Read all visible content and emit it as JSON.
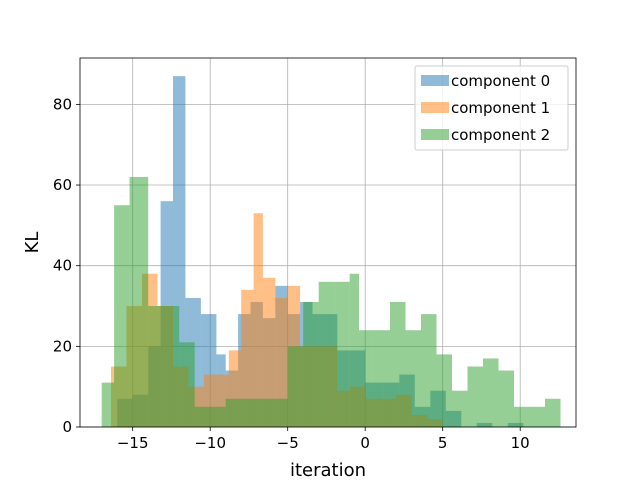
{
  "chart_data": {
    "type": "bar",
    "xlabel": "iteration",
    "ylabel": "KL",
    "xlim": [
      -18.4,
      13.6
    ],
    "ylim": [
      0,
      91.5
    ],
    "grid": true,
    "legend_position": "top-right",
    "x_ticks": [
      -15,
      -10,
      -5,
      0,
      5,
      10
    ],
    "x_tick_labels": [
      "−15",
      "−10",
      "−5",
      "0",
      "5",
      "10"
    ],
    "y_ticks": [
      0,
      20,
      40,
      60,
      80
    ],
    "y_tick_labels": [
      "0",
      "20",
      "40",
      "60",
      "80"
    ],
    "series": [
      {
        "name": "component 0",
        "color": "#1f77b4",
        "opacity": 0.5,
        "bins": [
          [
            -16.0,
            -15.0,
            7
          ],
          [
            -15.0,
            -14.0,
            8
          ],
          [
            -14.0,
            -13.2,
            20
          ],
          [
            -13.2,
            -12.4,
            56
          ],
          [
            -12.4,
            -11.6,
            87
          ],
          [
            -11.6,
            -10.6,
            32
          ],
          [
            -10.6,
            -9.6,
            28
          ],
          [
            -9.6,
            -9.0,
            18
          ],
          [
            -9.0,
            -8.2,
            14
          ],
          [
            -8.2,
            -7.4,
            28
          ],
          [
            -7.4,
            -6.6,
            31
          ],
          [
            -6.6,
            -5.8,
            27
          ],
          [
            -5.8,
            -5.0,
            35
          ],
          [
            -5.0,
            -4.2,
            28
          ],
          [
            -4.2,
            -3.4,
            31
          ],
          [
            -3.4,
            -2.6,
            28
          ],
          [
            -2.6,
            -1.8,
            28
          ],
          [
            -1.8,
            -1.0,
            19
          ],
          [
            -1.0,
            0.0,
            19
          ],
          [
            0.0,
            1.2,
            11
          ],
          [
            1.2,
            2.2,
            11
          ],
          [
            2.2,
            3.2,
            13
          ],
          [
            3.2,
            4.2,
            5
          ],
          [
            4.2,
            5.2,
            9
          ],
          [
            5.2,
            6.2,
            4
          ],
          [
            6.2,
            7.2,
            0
          ],
          [
            7.2,
            8.2,
            1
          ],
          [
            8.2,
            9.2,
            0
          ],
          [
            9.2,
            10.2,
            1
          ]
        ]
      },
      {
        "name": "component 1",
        "color": "#ff7f0e",
        "opacity": 0.5,
        "bins": [
          [
            -16.4,
            -15.4,
            15
          ],
          [
            -15.4,
            -14.4,
            30
          ],
          [
            -14.4,
            -13.4,
            38
          ],
          [
            -13.4,
            -12.4,
            30
          ],
          [
            -12.4,
            -11.4,
            15
          ],
          [
            -11.4,
            -10.4,
            10
          ],
          [
            -10.4,
            -9.6,
            13
          ],
          [
            -9.6,
            -8.8,
            13
          ],
          [
            -8.8,
            -8.0,
            19
          ],
          [
            -8.0,
            -7.2,
            34
          ],
          [
            -7.2,
            -6.6,
            53
          ],
          [
            -6.6,
            -5.8,
            37
          ],
          [
            -5.8,
            -5.0,
            32
          ],
          [
            -5.0,
            -4.2,
            35
          ],
          [
            -4.2,
            -3.4,
            20
          ],
          [
            -3.4,
            -2.6,
            20
          ],
          [
            -2.6,
            -1.8,
            20
          ],
          [
            -1.8,
            -1.0,
            9
          ],
          [
            -1.0,
            0.0,
            10
          ],
          [
            0.0,
            1.0,
            7
          ],
          [
            1.0,
            2.0,
            7
          ],
          [
            2.0,
            3.0,
            8
          ],
          [
            3.0,
            4.0,
            3
          ],
          [
            4.0,
            5.0,
            2
          ]
        ]
      },
      {
        "name": "component 2",
        "color": "#2ca02c",
        "opacity": 0.5,
        "bins": [
          [
            -17.0,
            -16.2,
            11
          ],
          [
            -16.2,
            -15.2,
            55
          ],
          [
            -15.2,
            -14.0,
            62
          ],
          [
            -14.0,
            -13.0,
            30
          ],
          [
            -13.0,
            -12.0,
            30
          ],
          [
            -12.0,
            -11.0,
            21
          ],
          [
            -11.0,
            -10.0,
            5
          ],
          [
            -10.0,
            -9.0,
            5
          ],
          [
            -9.0,
            -8.0,
            7
          ],
          [
            -8.0,
            -7.0,
            7
          ],
          [
            -7.0,
            -6.0,
            7
          ],
          [
            -6.0,
            -5.0,
            7
          ],
          [
            -5.0,
            -4.0,
            20
          ],
          [
            -4.0,
            -3.0,
            31
          ],
          [
            -3.0,
            -2.0,
            36
          ],
          [
            -2.0,
            -1.0,
            36
          ],
          [
            -1.0,
            -0.4,
            38
          ],
          [
            -0.4,
            0.4,
            24
          ],
          [
            0.4,
            1.6,
            24
          ],
          [
            1.6,
            2.6,
            31
          ],
          [
            2.6,
            3.6,
            24
          ],
          [
            3.6,
            4.6,
            28
          ],
          [
            4.6,
            5.6,
            18
          ],
          [
            5.6,
            6.6,
            9
          ],
          [
            6.6,
            7.6,
            15
          ],
          [
            7.6,
            8.6,
            17
          ],
          [
            8.6,
            9.6,
            14
          ],
          [
            9.6,
            10.6,
            5
          ],
          [
            10.6,
            11.6,
            5
          ],
          [
            11.6,
            12.6,
            7
          ]
        ]
      }
    ]
  }
}
